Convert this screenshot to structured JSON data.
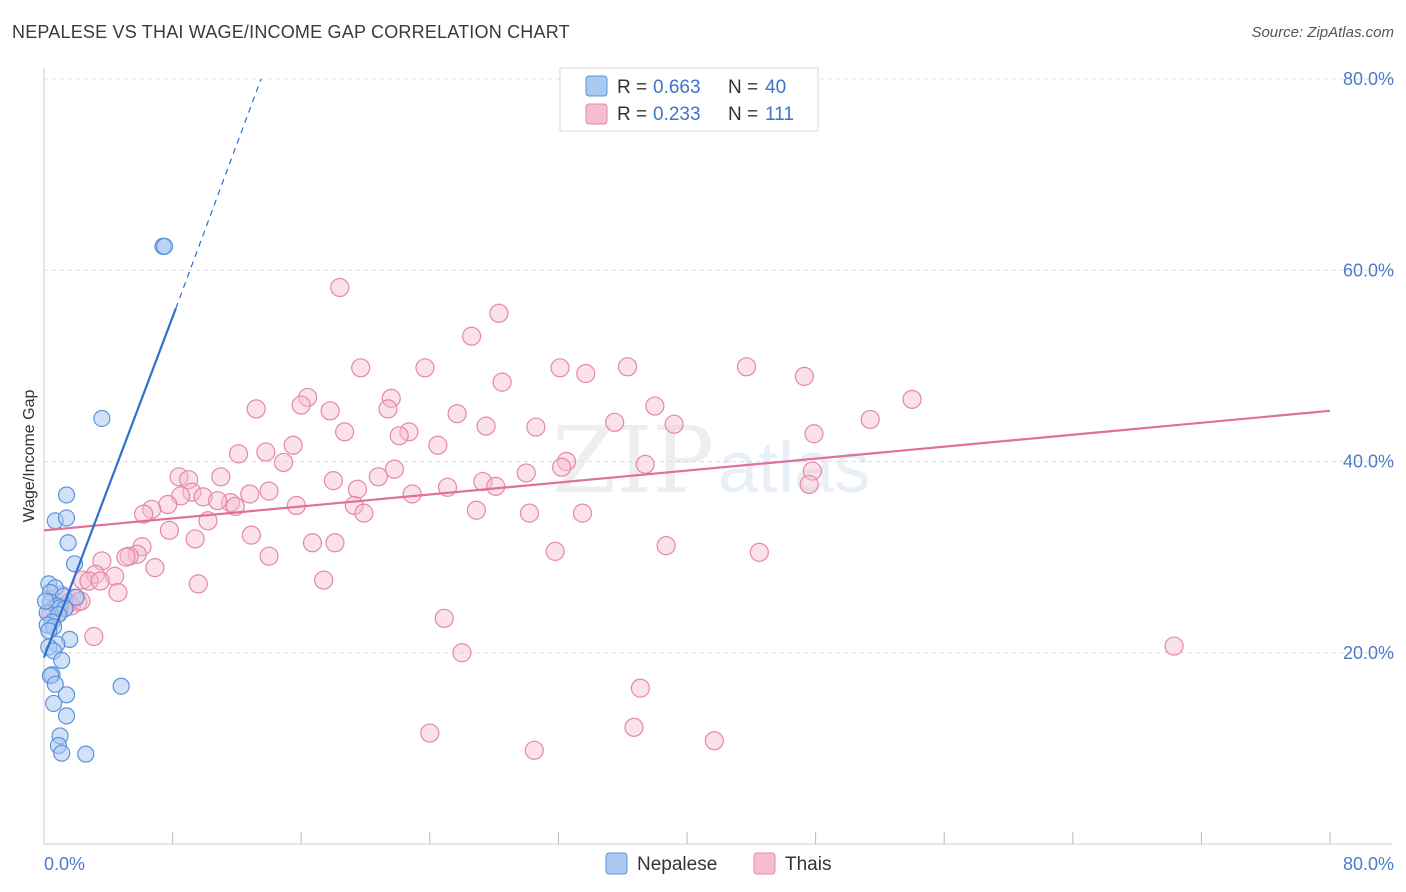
{
  "title": "NEPALESE VS THAI WAGE/INCOME GAP CORRELATION CHART",
  "source": "Source: ZipAtlas.com",
  "watermark": {
    "zip": "ZIP",
    "atlas": "atlas"
  },
  "legend": {
    "nepalese": {
      "r_label": "R =",
      "r_value": "0.663",
      "n_label": "N =",
      "n_value": "40"
    },
    "thais": {
      "r_label": "R =",
      "r_value": "0.233",
      "n_label": "N =",
      "n_value": "111"
    }
  },
  "bottom_legend": {
    "nepalese": "Nepalese",
    "thais": "Thais"
  },
  "colors": {
    "nepalese_fill": "#a9c9f2",
    "nepalese_stroke": "#5b93dc",
    "nepalese_line": "#2f6fd0",
    "thais_fill": "#f6bcd0",
    "thais_stroke": "#e687a8",
    "thais_line": "#e0709a",
    "tick_text": "#4a7cc9",
    "grid": "#dddddd"
  },
  "chart_data": {
    "type": "scatter",
    "title": "NEPALESE VS THAI WAGE/INCOME GAP CORRELATION CHART",
    "xlabel": "",
    "ylabel": "Wage/Income Gap",
    "xlim": [
      0,
      80
    ],
    "ylim": [
      0,
      85
    ],
    "x_tick_labels": [
      "0.0%",
      "80.0%"
    ],
    "y_ticks": [
      20,
      40,
      60,
      80
    ],
    "y_tick_labels": [
      "20.0%",
      "40.0%",
      "60.0%",
      "80.0%"
    ],
    "series": [
      {
        "name": "Nepalese",
        "r": 0.663,
        "n": 40,
        "trend": {
          "x0": 0,
          "y0": 19.5,
          "x1": 8.2,
          "y1": 56,
          "dash_x1": 13.5,
          "dash_y1": 80
        },
        "points": [
          [
            7.4,
            62.5
          ],
          [
            7.5,
            62.5
          ],
          [
            3.6,
            44.5
          ],
          [
            1.4,
            36.5
          ],
          [
            0.7,
            33.8
          ],
          [
            1.4,
            34.1
          ],
          [
            1.5,
            31.5
          ],
          [
            1.9,
            29.3
          ],
          [
            0.3,
            27.2
          ],
          [
            0.7,
            26.8
          ],
          [
            0.4,
            26.3
          ],
          [
            1.2,
            25.9
          ],
          [
            2.0,
            25.8
          ],
          [
            0.4,
            25.3
          ],
          [
            0.8,
            24.9
          ],
          [
            1.0,
            24.7
          ],
          [
            1.3,
            24.6
          ],
          [
            0.2,
            24.2
          ],
          [
            0.9,
            24.0
          ],
          [
            0.5,
            23.2
          ],
          [
            0.2,
            22.9
          ],
          [
            0.6,
            22.7
          ],
          [
            0.3,
            22.3
          ],
          [
            1.6,
            21.4
          ],
          [
            0.8,
            20.9
          ],
          [
            0.3,
            20.6
          ],
          [
            0.6,
            20.2
          ],
          [
            1.1,
            19.2
          ],
          [
            0.5,
            17.7
          ],
          [
            0.4,
            17.6
          ],
          [
            0.7,
            16.7
          ],
          [
            4.8,
            16.5
          ],
          [
            1.4,
            15.6
          ],
          [
            0.6,
            14.7
          ],
          [
            1.4,
            13.4
          ],
          [
            1.0,
            11.3
          ],
          [
            0.9,
            10.3
          ],
          [
            1.1,
            9.5
          ],
          [
            2.6,
            9.4
          ],
          [
            0.1,
            25.4
          ]
        ]
      },
      {
        "name": "Thais",
        "r": 0.233,
        "n": 111,
        "trend": {
          "x0": 0,
          "y0": 32.8,
          "x1": 80,
          "y1": 45.3
        },
        "points": [
          [
            18.4,
            58.2
          ],
          [
            28.3,
            55.5
          ],
          [
            26.6,
            53.1
          ],
          [
            19.7,
            49.8
          ],
          [
            23.7,
            49.8
          ],
          [
            32.1,
            49.8
          ],
          [
            36.3,
            49.9
          ],
          [
            43.7,
            49.9
          ],
          [
            33.7,
            49.2
          ],
          [
            28.5,
            48.3
          ],
          [
            47.3,
            48.9
          ],
          [
            16.4,
            46.7
          ],
          [
            21.6,
            46.6
          ],
          [
            54.0,
            46.5
          ],
          [
            16.0,
            45.9
          ],
          [
            21.4,
            45.5
          ],
          [
            13.2,
            45.5
          ],
          [
            17.8,
            45.3
          ],
          [
            38.0,
            45.8
          ],
          [
            25.7,
            45.0
          ],
          [
            35.5,
            44.1
          ],
          [
            51.4,
            44.4
          ],
          [
            39.2,
            43.9
          ],
          [
            27.5,
            43.7
          ],
          [
            30.6,
            43.6
          ],
          [
            18.7,
            43.1
          ],
          [
            22.7,
            43.1
          ],
          [
            22.1,
            42.7
          ],
          [
            47.9,
            42.9
          ],
          [
            24.5,
            41.7
          ],
          [
            15.5,
            41.7
          ],
          [
            13.8,
            41.0
          ],
          [
            12.1,
            40.8
          ],
          [
            14.9,
            39.9
          ],
          [
            32.5,
            40.0
          ],
          [
            37.4,
            39.7
          ],
          [
            32.2,
            39.4
          ],
          [
            21.8,
            39.2
          ],
          [
            30.0,
            38.8
          ],
          [
            20.8,
            38.4
          ],
          [
            47.8,
            39.0
          ],
          [
            8.4,
            38.4
          ],
          [
            11.0,
            38.4
          ],
          [
            9.0,
            38.1
          ],
          [
            18.0,
            38.0
          ],
          [
            27.3,
            37.9
          ],
          [
            25.1,
            37.3
          ],
          [
            47.6,
            37.6
          ],
          [
            28.1,
            37.4
          ],
          [
            19.5,
            37.1
          ],
          [
            14.0,
            36.9
          ],
          [
            9.2,
            36.8
          ],
          [
            8.5,
            36.4
          ],
          [
            22.9,
            36.6
          ],
          [
            12.8,
            36.6
          ],
          [
            9.9,
            36.3
          ],
          [
            11.6,
            35.7
          ],
          [
            10.8,
            35.9
          ],
          [
            15.7,
            35.4
          ],
          [
            7.7,
            35.5
          ],
          [
            19.3,
            35.4
          ],
          [
            11.9,
            35.3
          ],
          [
            6.7,
            35.0
          ],
          [
            19.9,
            34.6
          ],
          [
            33.5,
            34.6
          ],
          [
            26.9,
            34.9
          ],
          [
            30.2,
            34.6
          ],
          [
            6.2,
            34.5
          ],
          [
            10.2,
            33.8
          ],
          [
            7.8,
            32.8
          ],
          [
            12.9,
            32.3
          ],
          [
            9.4,
            31.9
          ],
          [
            16.7,
            31.5
          ],
          [
            18.1,
            31.5
          ],
          [
            6.1,
            31.1
          ],
          [
            38.7,
            31.2
          ],
          [
            5.8,
            30.3
          ],
          [
            31.8,
            30.6
          ],
          [
            44.5,
            30.5
          ],
          [
            14.0,
            30.1
          ],
          [
            5.3,
            30.1
          ],
          [
            5.1,
            30.0
          ],
          [
            3.6,
            29.6
          ],
          [
            6.9,
            28.9
          ],
          [
            3.2,
            28.2
          ],
          [
            4.4,
            28.0
          ],
          [
            2.4,
            27.6
          ],
          [
            2.8,
            27.5
          ],
          [
            3.5,
            27.5
          ],
          [
            17.4,
            27.6
          ],
          [
            4.6,
            26.3
          ],
          [
            1.1,
            26.0
          ],
          [
            1.9,
            25.7
          ],
          [
            2.1,
            25.3
          ],
          [
            1.5,
            25.2
          ],
          [
            1.3,
            24.8
          ],
          [
            1.7,
            24.9
          ],
          [
            0.6,
            24.6
          ],
          [
            0.9,
            24.3
          ],
          [
            2.3,
            25.4
          ],
          [
            0.4,
            24.0
          ],
          [
            3.1,
            21.7
          ],
          [
            24.9,
            23.6
          ],
          [
            26.0,
            20.0
          ],
          [
            70.3,
            20.7
          ],
          [
            37.1,
            16.3
          ],
          [
            36.7,
            12.2
          ],
          [
            24.0,
            11.6
          ],
          [
            41.7,
            10.8
          ],
          [
            30.5,
            9.8
          ],
          [
            9.6,
            27.2
          ]
        ]
      }
    ]
  }
}
